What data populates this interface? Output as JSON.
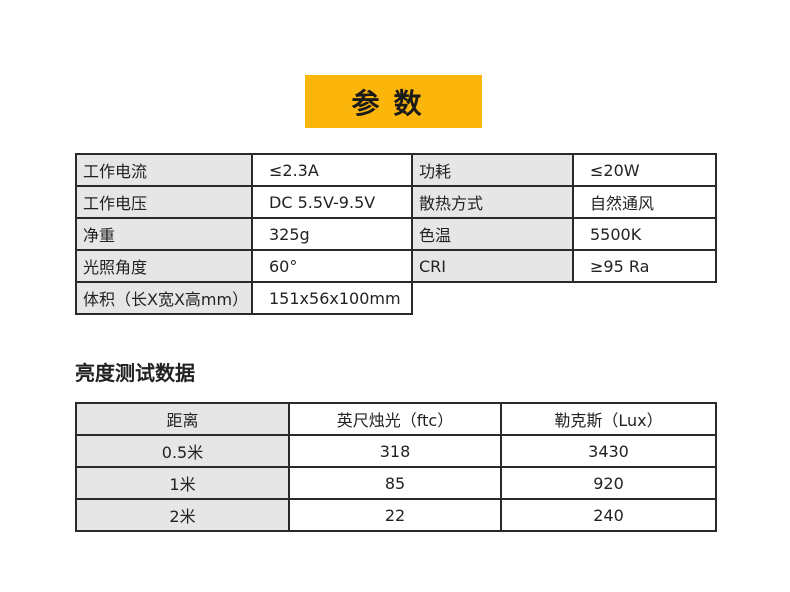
{
  "banner": {
    "title": "参数"
  },
  "specs": [
    [
      "工作电流",
      "≤2.3A",
      "功耗",
      "≤20W"
    ],
    [
      "工作电压",
      "DC 5.5V-9.5V",
      "散热方式",
      "自然通风"
    ],
    [
      "净重",
      "325g",
      "色温",
      "5500K"
    ],
    [
      "光照角度",
      "60°",
      "CRI",
      "≥95 Ra"
    ],
    [
      "体积（长X宽X高mm）",
      "151x56x100mm"
    ]
  ],
  "brightness": {
    "title": "亮度测试数据",
    "headers": [
      "距离",
      "英尺烛光（ftc）",
      "勒克斯（Lux）"
    ],
    "rows": [
      [
        "0.5米",
        "318",
        "3430"
      ],
      [
        "1米",
        "85",
        "920"
      ],
      [
        "2米",
        "22",
        "240"
      ]
    ]
  },
  "colors": {
    "banner": "#fbb50b",
    "label_cell": "#e6e6e6"
  }
}
